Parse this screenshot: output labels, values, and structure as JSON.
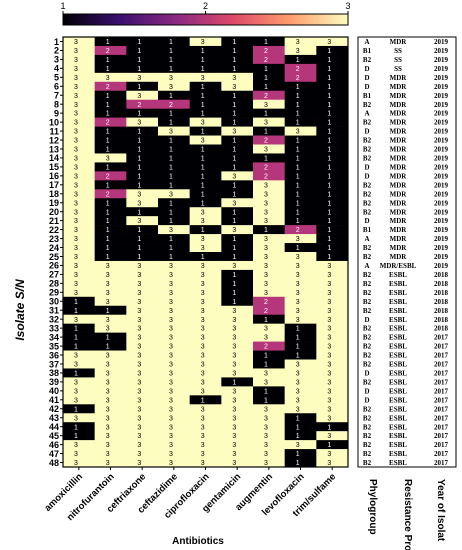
{
  "chart_data": {
    "type": "heatmap",
    "colorbar": {
      "ticks": [
        "1",
        "2",
        "3"
      ],
      "min": 1,
      "max": 3,
      "colors": [
        "#000004",
        "#3b0f70",
        "#8c2981",
        "#de4968",
        "#fe9f6d",
        "#fcfdbf"
      ]
    },
    "ylabel": "Isolate S/N",
    "xlabel": "Antibiotics",
    "rows": [
      "1",
      "2",
      "3",
      "4",
      "5",
      "6",
      "7",
      "8",
      "9",
      "10",
      "11",
      "12",
      "13",
      "14",
      "15",
      "16",
      "17",
      "18",
      "19",
      "20",
      "21",
      "22",
      "23",
      "24",
      "25",
      "26",
      "27",
      "28",
      "29",
      "30",
      "31",
      "32",
      "33",
      "34",
      "35",
      "36",
      "37",
      "38",
      "39",
      "40",
      "41",
      "42",
      "43",
      "44",
      "45",
      "46",
      "47",
      "48"
    ],
    "columns": [
      "amoxicillin",
      "nitrofurantoin",
      "ceftriaxone",
      "ceftazidime",
      "ciprofloxacin",
      "gentamicin",
      "augmentin",
      "levofloxacin",
      "trim/sulfame"
    ],
    "values": [
      [
        3,
        1,
        1,
        1,
        3,
        1,
        1,
        3,
        3
      ],
      [
        3,
        2,
        1,
        1,
        1,
        1,
        2,
        3,
        1
      ],
      [
        3,
        1,
        1,
        1,
        1,
        1,
        2,
        1,
        1
      ],
      [
        3,
        1,
        1,
        1,
        1,
        1,
        1,
        2,
        1
      ],
      [
        3,
        3,
        3,
        3,
        3,
        3,
        1,
        2,
        1
      ],
      [
        3,
        2,
        1,
        3,
        1,
        3,
        1,
        1,
        1
      ],
      [
        3,
        1,
        3,
        1,
        1,
        1,
        2,
        1,
        1
      ],
      [
        3,
        1,
        2,
        2,
        1,
        1,
        3,
        1,
        1
      ],
      [
        3,
        1,
        1,
        1,
        1,
        1,
        1,
        1,
        1
      ],
      [
        3,
        2,
        3,
        1,
        3,
        1,
        3,
        1,
        1
      ],
      [
        3,
        1,
        1,
        3,
        1,
        3,
        1,
        3,
        1
      ],
      [
        3,
        1,
        1,
        1,
        3,
        1,
        2,
        1,
        1
      ],
      [
        3,
        1,
        1,
        1,
        1,
        1,
        3,
        1,
        1
      ],
      [
        3,
        3,
        1,
        1,
        1,
        1,
        1,
        1,
        1
      ],
      [
        3,
        1,
        1,
        1,
        1,
        1,
        2,
        1,
        1
      ],
      [
        3,
        2,
        1,
        1,
        1,
        3,
        2,
        1,
        1
      ],
      [
        3,
        1,
        1,
        1,
        1,
        1,
        3,
        1,
        1
      ],
      [
        3,
        2,
        3,
        3,
        1,
        1,
        3,
        1,
        1
      ],
      [
        3,
        1,
        3,
        1,
        1,
        3,
        3,
        1,
        1
      ],
      [
        3,
        1,
        1,
        1,
        3,
        1,
        3,
        1,
        1
      ],
      [
        3,
        1,
        3,
        1,
        3,
        1,
        3,
        1,
        1
      ],
      [
        3,
        1,
        1,
        3,
        1,
        3,
        1,
        2,
        1
      ],
      [
        3,
        1,
        1,
        1,
        3,
        1,
        3,
        3,
        1
      ],
      [
        3,
        1,
        1,
        1,
        3,
        1,
        3,
        1,
        1
      ],
      [
        3,
        1,
        1,
        1,
        1,
        1,
        3,
        3,
        1
      ],
      [
        3,
        3,
        3,
        3,
        3,
        3,
        3,
        3,
        3
      ],
      [
        3,
        3,
        3,
        3,
        3,
        1,
        3,
        3,
        3
      ],
      [
        3,
        3,
        3,
        3,
        3,
        1,
        3,
        3,
        3
      ],
      [
        3,
        3,
        3,
        3,
        3,
        1,
        3,
        3,
        3
      ],
      [
        1,
        3,
        3,
        3,
        3,
        1,
        2,
        3,
        3
      ],
      [
        1,
        1,
        3,
        3,
        3,
        3,
        2,
        3,
        3
      ],
      [
        3,
        3,
        3,
        3,
        3,
        3,
        1,
        3,
        3
      ],
      [
        1,
        3,
        3,
        3,
        3,
        3,
        3,
        1,
        3
      ],
      [
        1,
        1,
        3,
        3,
        3,
        3,
        3,
        1,
        3
      ],
      [
        1,
        1,
        3,
        3,
        3,
        3,
        2,
        1,
        3
      ],
      [
        3,
        3,
        3,
        3,
        3,
        3,
        1,
        1,
        3
      ],
      [
        3,
        3,
        3,
        3,
        3,
        3,
        1,
        3,
        3
      ],
      [
        1,
        3,
        3,
        3,
        3,
        3,
        3,
        3,
        3
      ],
      [
        3,
        3,
        3,
        3,
        3,
        1,
        3,
        3,
        3
      ],
      [
        3,
        3,
        3,
        3,
        3,
        3,
        1,
        3,
        3
      ],
      [
        3,
        3,
        3,
        3,
        1,
        3,
        1,
        3,
        3
      ],
      [
        1,
        3,
        3,
        3,
        3,
        3,
        3,
        3,
        3
      ],
      [
        3,
        3,
        3,
        3,
        3,
        3,
        3,
        1,
        3
      ],
      [
        1,
        3,
        3,
        3,
        3,
        3,
        3,
        1,
        1
      ],
      [
        1,
        3,
        3,
        3,
        3,
        3,
        3,
        1,
        3
      ],
      [
        3,
        3,
        3,
        3,
        3,
        3,
        3,
        3,
        1
      ],
      [
        3,
        3,
        3,
        3,
        3,
        3,
        3,
        1,
        3
      ],
      [
        3,
        3,
        3,
        3,
        3,
        3,
        3,
        1,
        3
      ]
    ],
    "table": {
      "headers": [
        "Phylogroup",
        "Resistance Profile.",
        "Year of Isolat"
      ],
      "rows": [
        [
          "A",
          "MDR",
          "2019"
        ],
        [
          "B1",
          "SS",
          "2019"
        ],
        [
          "B2",
          "SS",
          "2019"
        ],
        [
          "D",
          "SS",
          "2019"
        ],
        [
          "D",
          "MDR",
          "2019"
        ],
        [
          "D",
          "MDR",
          "2019"
        ],
        [
          "B1",
          "MDR",
          "2019"
        ],
        [
          "B2",
          "MDR",
          "2019"
        ],
        [
          "A",
          "MDR",
          "2019"
        ],
        [
          "B2",
          "MDR",
          "2019"
        ],
        [
          "D",
          "MDR",
          "2019"
        ],
        [
          "B2",
          "MDR",
          "2019"
        ],
        [
          "B2",
          "MDR",
          "2019"
        ],
        [
          "B2",
          "MDR",
          "2019"
        ],
        [
          "D",
          "MDR",
          "2019"
        ],
        [
          "D",
          "MDR",
          "2019"
        ],
        [
          "B2",
          "MDR",
          "2019"
        ],
        [
          "B2",
          "MDR",
          "2019"
        ],
        [
          "B2",
          "MDR",
          "2019"
        ],
        [
          "B2",
          "MDR",
          "2019"
        ],
        [
          "D",
          "MDR",
          "2019"
        ],
        [
          "B1",
          "MDR",
          "2019"
        ],
        [
          "A",
          "MDR",
          "2019"
        ],
        [
          "B2",
          "MDR",
          "2019"
        ],
        [
          "B2",
          "MDR",
          "2019"
        ],
        [
          "A",
          "MDR/ESBL",
          "2019"
        ],
        [
          "B2",
          "ESBL",
          "2018"
        ],
        [
          "B2",
          "ESBL",
          "2018"
        ],
        [
          "B2",
          "ESBL",
          "2018"
        ],
        [
          "B2",
          "ESBL",
          "2018"
        ],
        [
          "B2",
          "ESBL",
          "2018"
        ],
        [
          "D",
          "ESBL",
          "2018"
        ],
        [
          "B2",
          "ESBL",
          "2018"
        ],
        [
          "B2",
          "ESBL",
          "2017"
        ],
        [
          "B2",
          "ESBL",
          "2017"
        ],
        [
          "B2",
          "ESBL",
          "2017"
        ],
        [
          "B2",
          "ESBL",
          "2017"
        ],
        [
          "D",
          "ESBL",
          "2017"
        ],
        [
          "B2",
          "ESBL",
          "2017"
        ],
        [
          "D",
          "ESBL",
          "2017"
        ],
        [
          "D",
          "ESBL",
          "2017"
        ],
        [
          "B2",
          "ESBL",
          "2017"
        ],
        [
          "B2",
          "ESBL",
          "2017"
        ],
        [
          "B2",
          "ESBL",
          "2017"
        ],
        [
          "B2",
          "ESBL",
          "2017"
        ],
        [
          "B2",
          "ESBL",
          "2017"
        ],
        [
          "B2",
          "ESBL",
          "2017"
        ],
        [
          "B2",
          "ESBL",
          "2017"
        ]
      ]
    }
  }
}
